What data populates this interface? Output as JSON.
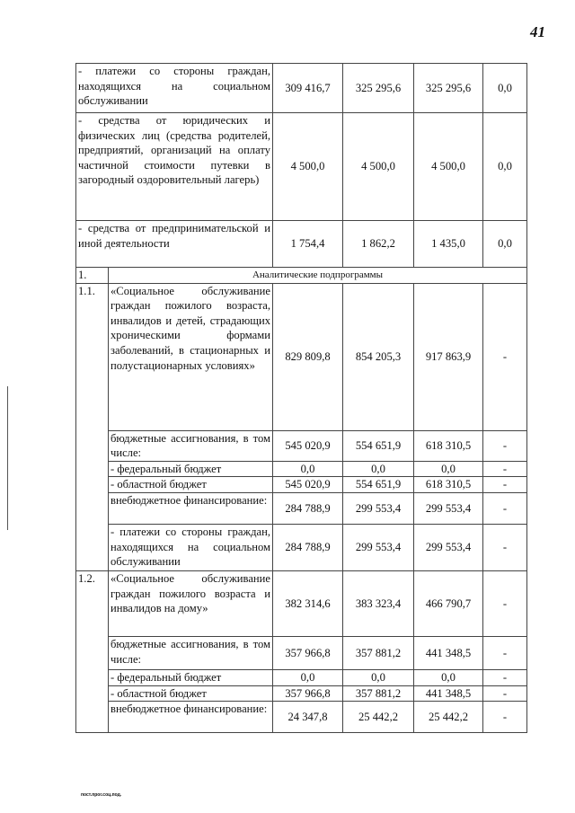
{
  "page_number": "41",
  "footer": "пост.прог.соц.под.",
  "rows": [
    {
      "type": "sub",
      "desc": "- платежи со стороны граждан, находящихся на социальном обслуживании",
      "v": [
        "309 416,7",
        "325 295,6",
        "325 295,6",
        "0,0"
      ]
    },
    {
      "type": "sub",
      "desc": "- средства от юридических и физических лиц (средства родителей, предприятий, организаций на оплату частичной стоимости путевки в загородный оздоровительный лагерь)",
      "v": [
        "4 500,0",
        "4 500,0",
        "4 500,0",
        "0,0"
      ]
    },
    {
      "type": "sub",
      "desc": "- средства от предпринимательской и иной деятельности",
      "v": [
        "1 754,4",
        "1 862,2",
        "1 435,0",
        "0,0"
      ]
    },
    {
      "type": "header",
      "no": "1.",
      "desc": "Аналитические подпрограммы"
    },
    {
      "type": "item",
      "no": "1.1.",
      "desc": "«Социальное обслуживание граждан пожилого возраста, инвалидов и детей, страдающих хроническими формами заболеваний, в стационарных и полустационарных условиях»",
      "v": [
        "829 809,8",
        "854 205,3",
        "917 863,9",
        "-"
      ]
    },
    {
      "type": "line",
      "desc": "бюджетные ассигнования, в том числе:",
      "v": [
        "545 020,9",
        "554 651,9",
        "618 310,5",
        "-"
      ]
    },
    {
      "type": "line",
      "desc": "- федеральный бюджет",
      "v": [
        "0,0",
        "0,0",
        "0,0",
        "-"
      ]
    },
    {
      "type": "line",
      "desc": "- областной бюджет",
      "v": [
        "545 020,9",
        "554 651,9",
        "618 310,5",
        "-"
      ]
    },
    {
      "type": "line",
      "desc": "внебюджетное финансирование:",
      "v": [
        "284 788,9",
        "299 553,4",
        "299 553,4",
        "-"
      ]
    },
    {
      "type": "line",
      "desc": "- платежи со стороны граждан, находящихся на социальном обслуживании",
      "v": [
        "284 788,9",
        "299 553,4",
        "299 553,4",
        "-"
      ]
    },
    {
      "type": "item",
      "no": "1.2.",
      "desc": "«Социальное обслуживание граждан пожилого возраста и инвалидов на дому»",
      "v": [
        "382 314,6",
        "383 323,4",
        "466 790,7",
        "-"
      ]
    },
    {
      "type": "line",
      "desc": "бюджетные ассигнования, в том числе:",
      "v": [
        "357 966,8",
        "357 881,2",
        "441 348,5",
        "-"
      ]
    },
    {
      "type": "line",
      "desc": "- федеральный бюджет",
      "v": [
        "0,0",
        "0,0",
        "0,0",
        "-"
      ]
    },
    {
      "type": "line",
      "desc": "- областной бюджет",
      "v": [
        "357 966,8",
        "357 881,2",
        "441 348,5",
        "-"
      ]
    },
    {
      "type": "line",
      "desc": "внебюджетное финансирование:",
      "v": [
        "24 347,8",
        "25 442,2",
        "25 442,2",
        "-"
      ]
    }
  ]
}
